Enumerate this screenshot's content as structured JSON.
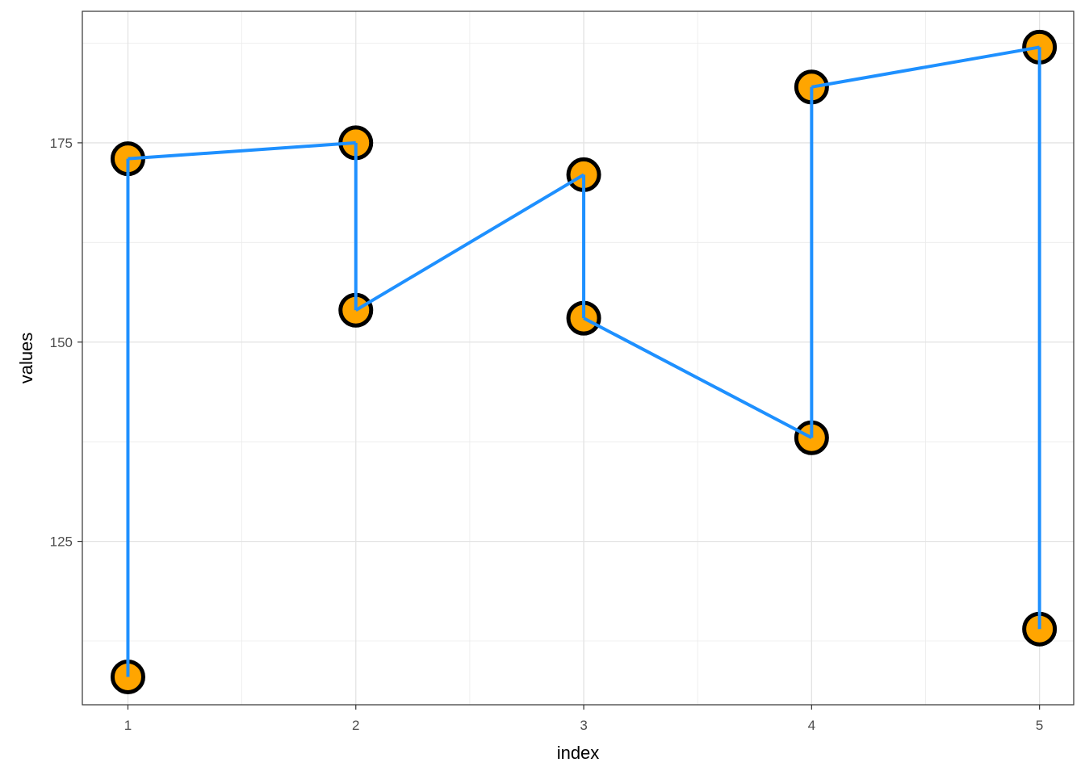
{
  "chart_data": {
    "type": "line",
    "xlabel": "index",
    "ylabel": "values",
    "xlim": [
      0.8,
      5.15
    ],
    "ylim": [
      104.5,
      191.5
    ],
    "x_ticks": [
      1,
      2,
      3,
      4,
      5
    ],
    "x_tick_labels": [
      "1",
      "2",
      "3",
      "4",
      "5"
    ],
    "y_ticks": [
      125,
      150,
      175
    ],
    "y_tick_labels": [
      "125",
      "150",
      "175"
    ],
    "y_minor_ticks": [
      112.5,
      137.5,
      162.5,
      187.5
    ],
    "x_minor_ticks": [
      1.5,
      2.5,
      3.5,
      4.5
    ],
    "grid": true,
    "series": [
      {
        "points": [
          {
            "x": 1,
            "y": 108
          },
          {
            "x": 1,
            "y": 173
          },
          {
            "x": 2,
            "y": 175
          },
          {
            "x": 2,
            "y": 154
          },
          {
            "x": 3,
            "y": 171
          },
          {
            "x": 3,
            "y": 153
          },
          {
            "x": 4,
            "y": 138
          },
          {
            "x": 4,
            "y": 182
          },
          {
            "x": 5,
            "y": 187
          },
          {
            "x": 5,
            "y": 114
          }
        ],
        "line_color": "#1E90FF",
        "marker_fill": "#FFA500",
        "marker_stroke": "#000000"
      }
    ]
  }
}
